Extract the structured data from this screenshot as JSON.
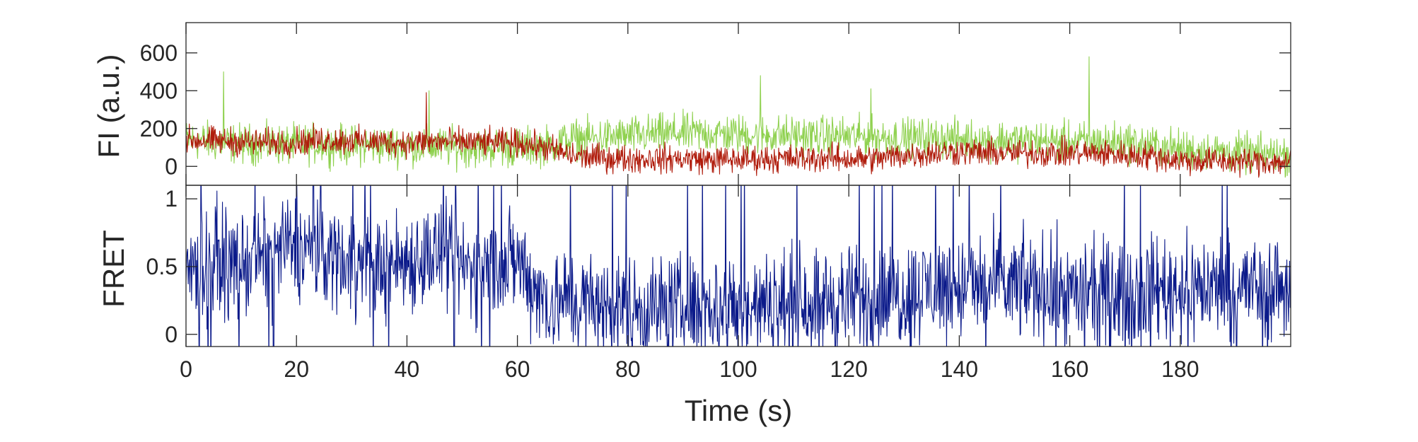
{
  "chart_data": [
    {
      "type": "line",
      "panel": "top",
      "ylabel": "FI (a.u.)",
      "xlim": [
        0,
        200
      ],
      "ylim": [
        -100,
        760
      ],
      "yticks": [
        0,
        200,
        400,
        600
      ],
      "ytick_labels": [
        "0",
        "200",
        "400",
        "600"
      ],
      "grid": false,
      "series": [
        {
          "color": "#8fd14f",
          "x": [
            0,
            5,
            10,
            15,
            20,
            25,
            30,
            35,
            40,
            45,
            50,
            55,
            60,
            65,
            70,
            75,
            80,
            85,
            90,
            95,
            100,
            105,
            110,
            115,
            120,
            125,
            130,
            135,
            140,
            145,
            150,
            155,
            160,
            165,
            170,
            175,
            180,
            185,
            190,
            195,
            200
          ],
          "values": [
            140,
            130,
            120,
            115,
            115,
            120,
            110,
            110,
            110,
            105,
            100,
            100,
            100,
            110,
            145,
            150,
            160,
            170,
            175,
            175,
            170,
            165,
            165,
            160,
            160,
            155,
            150,
            150,
            145,
            140,
            140,
            135,
            130,
            130,
            130,
            110,
            90,
            80,
            70,
            65,
            60
          ],
          "noise": 85,
          "spikes": [
            [
              6.8,
              500
            ],
            [
              163.5,
              580
            ],
            [
              104,
              480
            ],
            [
              124,
              410
            ],
            [
              44,
              400
            ]
          ]
        },
        {
          "color": "#b01c0c",
          "x": [
            0,
            5,
            10,
            15,
            20,
            25,
            30,
            35,
            40,
            45,
            50,
            55,
            60,
            65,
            70,
            75,
            80,
            85,
            90,
            95,
            100,
            105,
            110,
            115,
            120,
            125,
            130,
            135,
            140,
            145,
            150,
            155,
            160,
            165,
            170,
            175,
            180,
            185,
            190,
            195,
            200
          ],
          "values": [
            140,
            135,
            130,
            125,
            130,
            140,
            135,
            130,
            125,
            130,
            130,
            125,
            125,
            100,
            55,
            45,
            40,
            40,
            40,
            35,
            35,
            40,
            40,
            45,
            40,
            40,
            60,
            70,
            80,
            70,
            70,
            70,
            70,
            70,
            60,
            55,
            30,
            30,
            25,
            25,
            20
          ],
          "noise": 60,
          "spikes": [
            [
              43.5,
              390
            ]
          ]
        }
      ]
    },
    {
      "type": "line",
      "panel": "bottom",
      "xlabel": "Time (s)",
      "ylabel": "FRET",
      "xlim": [
        0,
        200
      ],
      "ylim": [
        -0.09,
        1.1
      ],
      "xticks": [
        0,
        20,
        40,
        60,
        80,
        100,
        120,
        140,
        160,
        180
      ],
      "xtick_labels": [
        "0",
        "20",
        "40",
        "60",
        "80",
        "100",
        "120",
        "140",
        "160",
        "180"
      ],
      "yticks": [
        0,
        0.5,
        1
      ],
      "ytick_labels": [
        "0",
        "0.5",
        "1"
      ],
      "grid": false,
      "series": [
        {
          "color": "#0b1a8a",
          "x": [
            0,
            5,
            10,
            15,
            20,
            25,
            30,
            35,
            40,
            45,
            50,
            55,
            60,
            65,
            70,
            75,
            80,
            85,
            90,
            95,
            100,
            105,
            110,
            115,
            120,
            125,
            130,
            135,
            140,
            145,
            150,
            155,
            160,
            165,
            170,
            175,
            180,
            185,
            190,
            195,
            200
          ],
          "values": [
            0.5,
            0.55,
            0.5,
            0.6,
            0.65,
            0.6,
            0.55,
            0.5,
            0.55,
            0.6,
            0.5,
            0.5,
            0.55,
            0.25,
            0.25,
            0.2,
            0.2,
            0.2,
            0.2,
            0.2,
            0.2,
            0.2,
            0.25,
            0.25,
            0.25,
            0.25,
            0.3,
            0.35,
            0.35,
            0.35,
            0.35,
            0.35,
            0.3,
            0.3,
            0.3,
            0.35,
            0.35,
            0.35,
            0.35,
            0.35,
            0.35
          ],
          "noise": 0.32
        }
      ]
    }
  ]
}
